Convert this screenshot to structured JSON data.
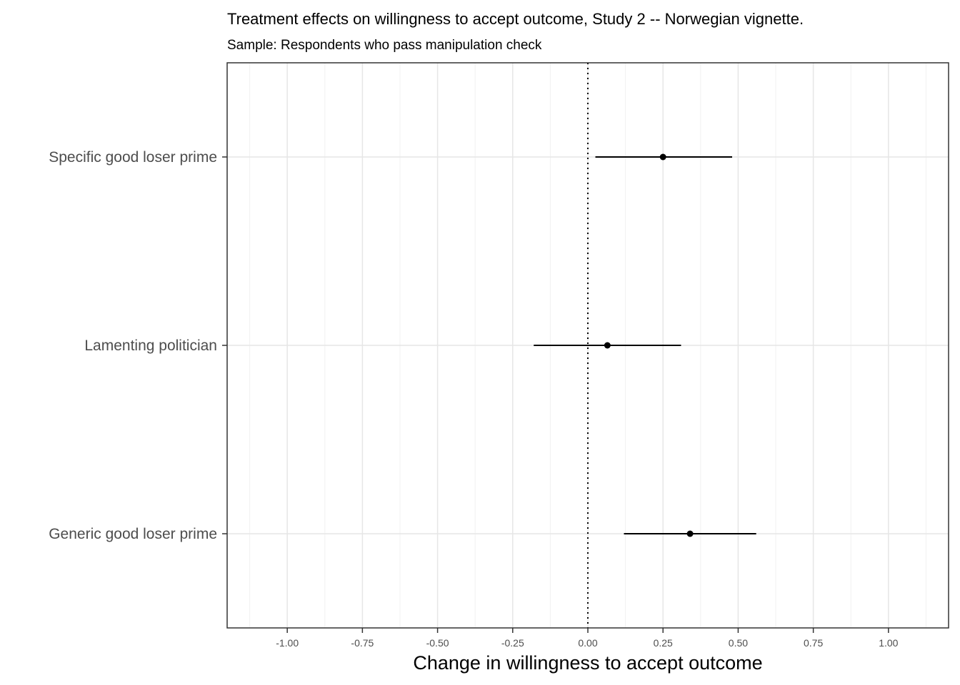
{
  "chart_data": {
    "type": "scatter",
    "subtype": "coefficient-plot",
    "title": "Treatment effects on willingness to accept outcome, Study 2 -- Norwegian vignette.",
    "subtitle": "Sample: Respondents who pass manipulation check",
    "xlabel": "Change in willingness to accept outcome",
    "ylabel": "",
    "xlim": [
      -1.2,
      1.2
    ],
    "x_ticks": [
      -1.0,
      -0.75,
      -0.5,
      -0.25,
      0.0,
      0.25,
      0.5,
      0.75,
      1.0
    ],
    "x_tick_labels": [
      "-1.00",
      "-0.75",
      "-0.50",
      "-0.25",
      "0.00",
      "0.25",
      "0.50",
      "0.75",
      "1.00"
    ],
    "reference_line": 0,
    "grid": true,
    "categories": [
      "Specific good loser prime",
      "Lamenting politician",
      "Generic good loser prime"
    ],
    "series": [
      {
        "estimates": [
          0.25,
          0.065,
          0.34
        ],
        "ci_low": [
          0.025,
          -0.18,
          0.12
        ],
        "ci_high": [
          0.48,
          0.31,
          0.56
        ]
      }
    ]
  }
}
